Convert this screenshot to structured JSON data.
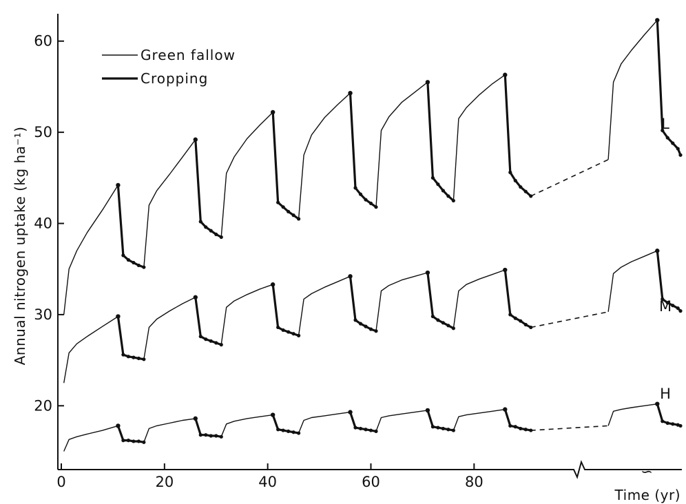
{
  "chart_data": {
    "type": "line",
    "title": "",
    "xlabel": "Time (yr)",
    "ylabel": "Annual nitrogen uptake (kg ha⁻¹)",
    "xlim": [
      0,
      120
    ],
    "ylim": [
      13,
      63
    ],
    "x_ticks": [
      "0",
      "20",
      "40",
      "60",
      "80"
    ],
    "y_ticks": [
      "20",
      "30",
      "40",
      "50",
      "60"
    ],
    "x_break_symbol": "∽",
    "legend": {
      "position": "top-left",
      "entries": [
        {
          "label": "Green fallow",
          "style": "thin"
        },
        {
          "label": "Cropping",
          "style": "thick"
        }
      ]
    },
    "series": [
      {
        "name": "L",
        "green_fallow": [
          [
            [
              0.5,
              30.0
            ],
            [
              1.5,
              35.0
            ],
            [
              3,
              37.0
            ],
            [
              5,
              39.0
            ],
            [
              8,
              41.5
            ],
            [
              11,
              44.2
            ]
          ],
          [
            [
              16,
              35.2
            ],
            [
              17,
              42.0
            ],
            [
              18.5,
              43.6
            ],
            [
              21,
              45.4
            ],
            [
              23.5,
              47.3
            ],
            [
              26,
              49.2
            ]
          ],
          [
            [
              31,
              38.5
            ],
            [
              32,
              45.5
            ],
            [
              33.5,
              47.3
            ],
            [
              36,
              49.3
            ],
            [
              38.5,
              50.8
            ],
            [
              41,
              52.2
            ]
          ],
          [
            [
              46,
              40.5
            ],
            [
              47,
              47.5
            ],
            [
              48.5,
              49.7
            ],
            [
              51,
              51.6
            ],
            [
              53.5,
              53.0
            ],
            [
              56,
              54.3
            ]
          ],
          [
            [
              61,
              41.8
            ],
            [
              62,
              50.2
            ],
            [
              63.5,
              51.7
            ],
            [
              66,
              53.3
            ],
            [
              68.5,
              54.4
            ],
            [
              71,
              55.5
            ]
          ],
          [
            [
              76,
              42.5
            ],
            [
              77,
              51.5
            ],
            [
              78.5,
              52.7
            ],
            [
              81,
              54.1
            ],
            [
              83.5,
              55.3
            ],
            [
              86,
              56.3
            ]
          ],
          [
            [
              106,
              47.0
            ],
            [
              107,
              55.5
            ],
            [
              108.5,
              57.5
            ],
            [
              110.5,
              59.0
            ],
            [
              113,
              60.7
            ],
            [
              115.5,
              62.3
            ]
          ]
        ],
        "cropping": [
          [
            [
              11,
              44.2
            ],
            [
              12,
              36.5
            ],
            [
              13,
              36.0
            ],
            [
              14,
              35.7
            ],
            [
              15,
              35.4
            ],
            [
              16,
              35.2
            ]
          ],
          [
            [
              26,
              49.2
            ],
            [
              27,
              40.2
            ],
            [
              28,
              39.6
            ],
            [
              29,
              39.2
            ],
            [
              30,
              38.8
            ],
            [
              31,
              38.5
            ]
          ],
          [
            [
              41,
              52.2
            ],
            [
              42,
              42.3
            ],
            [
              43,
              41.8
            ],
            [
              44,
              41.3
            ],
            [
              45,
              40.9
            ],
            [
              46,
              40.5
            ]
          ],
          [
            [
              56,
              54.3
            ],
            [
              57,
              43.9
            ],
            [
              58,
              43.2
            ],
            [
              59,
              42.6
            ],
            [
              60,
              42.2
            ],
            [
              61,
              41.8
            ]
          ],
          [
            [
              71,
              55.5
            ],
            [
              72,
              45.0
            ],
            [
              73,
              44.3
            ],
            [
              74,
              43.6
            ],
            [
              75,
              43.0
            ],
            [
              76,
              42.5
            ]
          ],
          [
            [
              86,
              56.3
            ],
            [
              87,
              45.6
            ],
            [
              88,
              44.7
            ],
            [
              89,
              44.0
            ],
            [
              90,
              43.5
            ],
            [
              91,
              43.0
            ]
          ],
          [
            [
              115.5,
              62.3
            ],
            [
              116.5,
              50.2
            ],
            [
              117.5,
              49.4
            ],
            [
              118.5,
              48.8
            ],
            [
              119.5,
              48.2
            ],
            [
              120,
              47.5
            ]
          ]
        ],
        "dashed": [
          [
            91,
            43.0
          ],
          [
            106,
            47.0
          ]
        ]
      },
      {
        "name": "M",
        "green_fallow": [
          [
            [
              0.5,
              22.5
            ],
            [
              1.5,
              25.8
            ],
            [
              3,
              26.8
            ],
            [
              5,
              27.6
            ],
            [
              8,
              28.7
            ],
            [
              11,
              29.8
            ]
          ],
          [
            [
              16,
              25.1
            ],
            [
              17,
              28.6
            ],
            [
              18.5,
              29.5
            ],
            [
              21,
              30.4
            ],
            [
              23.5,
              31.2
            ],
            [
              26,
              31.9
            ]
          ],
          [
            [
              31,
              26.7
            ],
            [
              32,
              30.8
            ],
            [
              33.5,
              31.5
            ],
            [
              36,
              32.2
            ],
            [
              38.5,
              32.8
            ],
            [
              41,
              33.3
            ]
          ],
          [
            [
              46,
              27.7
            ],
            [
              47,
              31.7
            ],
            [
              48.5,
              32.3
            ],
            [
              51,
              33.0
            ],
            [
              53.5,
              33.6
            ],
            [
              56,
              34.2
            ]
          ],
          [
            [
              61,
              28.2
            ],
            [
              62,
              32.6
            ],
            [
              63.5,
              33.2
            ],
            [
              66,
              33.8
            ],
            [
              68.5,
              34.2
            ],
            [
              71,
              34.6
            ]
          ],
          [
            [
              76,
              28.5
            ],
            [
              77,
              32.6
            ],
            [
              78.5,
              33.3
            ],
            [
              81,
              33.9
            ],
            [
              83.5,
              34.4
            ],
            [
              86,
              34.9
            ]
          ],
          [
            [
              106,
              30.3
            ],
            [
              107,
              34.5
            ],
            [
              108.5,
              35.2
            ],
            [
              110.5,
              35.8
            ],
            [
              113,
              36.4
            ],
            [
              115.5,
              37.0
            ]
          ]
        ],
        "cropping": [
          [
            [
              11,
              29.8
            ],
            [
              12,
              25.6
            ],
            [
              13,
              25.4
            ],
            [
              14,
              25.3
            ],
            [
              15,
              25.2
            ],
            [
              16,
              25.1
            ]
          ],
          [
            [
              26,
              31.9
            ],
            [
              27,
              27.6
            ],
            [
              28,
              27.3
            ],
            [
              29,
              27.1
            ],
            [
              30,
              26.9
            ],
            [
              31,
              26.7
            ]
          ],
          [
            [
              41,
              33.3
            ],
            [
              42,
              28.6
            ],
            [
              43,
              28.3
            ],
            [
              44,
              28.1
            ],
            [
              45,
              27.9
            ],
            [
              46,
              27.7
            ]
          ],
          [
            [
              56,
              34.2
            ],
            [
              57,
              29.4
            ],
            [
              58,
              29.0
            ],
            [
              59,
              28.7
            ],
            [
              60,
              28.4
            ],
            [
              61,
              28.2
            ]
          ],
          [
            [
              71,
              34.6
            ],
            [
              72,
              29.8
            ],
            [
              73,
              29.4
            ],
            [
              74,
              29.1
            ],
            [
              75,
              28.8
            ],
            [
              76,
              28.5
            ]
          ],
          [
            [
              86,
              34.9
            ],
            [
              87,
              30.0
            ],
            [
              88,
              29.6
            ],
            [
              89,
              29.3
            ],
            [
              90,
              28.9
            ],
            [
              91,
              28.6
            ]
          ],
          [
            [
              115.5,
              37.0
            ],
            [
              116.5,
              31.7
            ],
            [
              117.5,
              31.3
            ],
            [
              118.5,
              31.0
            ],
            [
              119.5,
              30.7
            ],
            [
              120,
              30.4
            ]
          ]
        ],
        "dashed": [
          [
            91,
            28.6
          ],
          [
            106,
            30.3
          ]
        ]
      },
      {
        "name": "H",
        "green_fallow": [
          [
            [
              0.5,
              15.0
            ],
            [
              1.5,
              16.3
            ],
            [
              3,
              16.6
            ],
            [
              5,
              16.9
            ],
            [
              8,
              17.3
            ],
            [
              11,
              17.8
            ]
          ],
          [
            [
              16,
              16.0
            ],
            [
              17,
              17.5
            ],
            [
              18.5,
              17.8
            ],
            [
              21,
              18.1
            ],
            [
              23.5,
              18.4
            ],
            [
              26,
              18.6
            ]
          ],
          [
            [
              31,
              16.6
            ],
            [
              32,
              18.0
            ],
            [
              33.5,
              18.3
            ],
            [
              36,
              18.6
            ],
            [
              38.5,
              18.8
            ],
            [
              41,
              19.0
            ]
          ],
          [
            [
              46,
              17.0
            ],
            [
              47,
              18.4
            ],
            [
              48.5,
              18.7
            ],
            [
              51,
              18.9
            ],
            [
              53.5,
              19.1
            ],
            [
              56,
              19.3
            ]
          ],
          [
            [
              61,
              17.2
            ],
            [
              62,
              18.7
            ],
            [
              63.5,
              18.9
            ],
            [
              66,
              19.1
            ],
            [
              68.5,
              19.3
            ],
            [
              71,
              19.5
            ]
          ],
          [
            [
              76,
              17.3
            ],
            [
              77,
              18.8
            ],
            [
              78.5,
              19.0
            ],
            [
              81,
              19.2
            ],
            [
              83.5,
              19.4
            ],
            [
              86,
              19.6
            ]
          ],
          [
            [
              106,
              17.8
            ],
            [
              107,
              19.4
            ],
            [
              108.5,
              19.6
            ],
            [
              110.5,
              19.8
            ],
            [
              113,
              20.0
            ],
            [
              115.5,
              20.2
            ]
          ]
        ],
        "cropping": [
          [
            [
              11,
              17.8
            ],
            [
              12,
              16.2
            ],
            [
              13,
              16.2
            ],
            [
              14,
              16.1
            ],
            [
              15,
              16.1
            ],
            [
              16,
              16.0
            ]
          ],
          [
            [
              26,
              18.6
            ],
            [
              27,
              16.8
            ],
            [
              28,
              16.8
            ],
            [
              29,
              16.7
            ],
            [
              30,
              16.7
            ],
            [
              31,
              16.6
            ]
          ],
          [
            [
              41,
              19.0
            ],
            [
              42,
              17.4
            ],
            [
              43,
              17.3
            ],
            [
              44,
              17.2
            ],
            [
              45,
              17.1
            ],
            [
              46,
              17.0
            ]
          ],
          [
            [
              56,
              19.3
            ],
            [
              57,
              17.6
            ],
            [
              58,
              17.5
            ],
            [
              59,
              17.4
            ],
            [
              60,
              17.3
            ],
            [
              61,
              17.2
            ]
          ],
          [
            [
              71,
              19.5
            ],
            [
              72,
              17.7
            ],
            [
              73,
              17.6
            ],
            [
              74,
              17.5
            ],
            [
              75,
              17.4
            ],
            [
              76,
              17.3
            ]
          ],
          [
            [
              86,
              19.6
            ],
            [
              87,
              17.8
            ],
            [
              88,
              17.7
            ],
            [
              89,
              17.5
            ],
            [
              90,
              17.4
            ],
            [
              91,
              17.3
            ]
          ],
          [
            [
              115.5,
              20.2
            ],
            [
              116.5,
              18.3
            ],
            [
              117.5,
              18.1
            ],
            [
              118.5,
              18.0
            ],
            [
              119.5,
              17.9
            ],
            [
              120,
              17.8
            ]
          ]
        ],
        "dashed": [
          [
            91,
            17.3
          ],
          [
            106,
            17.8
          ]
        ]
      }
    ]
  }
}
